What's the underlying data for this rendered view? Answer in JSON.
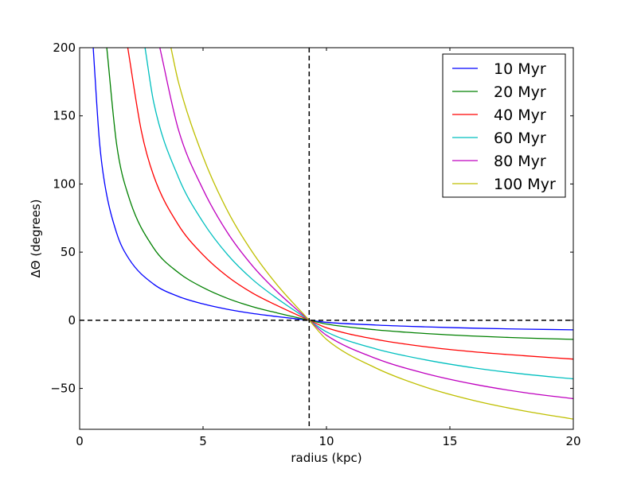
{
  "chart_data": {
    "type": "line",
    "title": "",
    "xlabel": "radius (kpc)",
    "ylabel": "ΔΘ (degrees)",
    "xlim": [
      0,
      20
    ],
    "ylim": [
      -80,
      200
    ],
    "xticks": [
      0,
      5,
      10,
      15,
      20
    ],
    "xtick_labels": [
      "0",
      "5",
      "10",
      "15",
      "20"
    ],
    "yticks": [
      -50,
      0,
      50,
      100,
      150,
      200
    ],
    "ytick_labels": [
      "−50",
      "0",
      "50",
      "100",
      "150",
      "200"
    ],
    "grid": false,
    "legend_position": "top-right",
    "reference_lines": [
      {
        "orientation": "vertical",
        "x": 9.3,
        "style": "dashed",
        "color": "#000000"
      },
      {
        "orientation": "horizontal",
        "y": 0,
        "style": "dashed",
        "color": "#000000"
      }
    ],
    "series": [
      {
        "name": "10 Myr",
        "color": "#0000ff",
        "x": [
          0.55,
          0.8,
          1.0,
          1.5,
          2.0,
          3.0,
          4.0,
          5.0,
          6.0,
          7.0,
          8.0,
          9.3,
          10.0,
          12.0,
          14.0,
          16.0,
          18.0,
          20.0
        ],
        "y": [
          200,
          132,
          102,
          64,
          45,
          26.5,
          17.5,
          12,
          8,
          5,
          2.7,
          0,
          -1.5,
          -3.5,
          -4.8,
          -5.8,
          -6.5,
          -7
        ]
      },
      {
        "name": "20 Myr",
        "color": "#008000",
        "x": [
          1.1,
          1.5,
          2.0,
          3.0,
          4.0,
          5.0,
          6.0,
          7.0,
          8.0,
          9.3,
          10.0,
          12.0,
          14.0,
          16.0,
          18.0,
          20.0
        ],
        "y": [
          200,
          129,
          90,
          53,
          35,
          24,
          16,
          10,
          5.4,
          0,
          -2.8,
          -7,
          -9.7,
          -11.6,
          -13,
          -14
        ]
      },
      {
        "name": "40 Myr",
        "color": "#ff0000",
        "x": [
          1.95,
          2.5,
          3.0,
          4.0,
          5.0,
          6.0,
          7.0,
          8.0,
          9.3,
          10.0,
          12.0,
          14.0,
          16.0,
          18.0,
          20.0
        ],
        "y": [
          200,
          139,
          106,
          70,
          48,
          32,
          20,
          10.8,
          0,
          -5.5,
          -14,
          -19.4,
          -23.2,
          -26,
          -28.5
        ]
      },
      {
        "name": "60 Myr",
        "color": "#00bfbf",
        "x": [
          2.65,
          3.0,
          4.0,
          5.0,
          6.0,
          7.0,
          8.0,
          9.3,
          10.0,
          12.0,
          14.0,
          16.0,
          18.0,
          20.0
        ],
        "y": [
          200,
          160,
          105,
          72,
          48,
          30,
          16,
          0,
          -8.5,
          -21,
          -29,
          -35,
          -39.5,
          -43
        ]
      },
      {
        "name": "80 Myr",
        "color": "#bf00bf",
        "x": [
          3.25,
          4.0,
          5.0,
          6.0,
          7.0,
          8.0,
          9.3,
          10.0,
          12.0,
          14.0,
          16.0,
          18.0,
          20.0
        ],
        "y": [
          200,
          140,
          96,
          64,
          40,
          21,
          0,
          -11,
          -28,
          -39,
          -47,
          -53,
          -57.5
        ]
      },
      {
        "name": "100 Myr",
        "color": "#bfbf00",
        "x": [
          3.7,
          4.0,
          5.0,
          6.0,
          7.0,
          8.0,
          9.3,
          10.0,
          12.0,
          14.0,
          16.0,
          18.0,
          20.0
        ],
        "y": [
          200,
          175,
          120,
          80,
          50,
          26,
          0,
          -14,
          -35,
          -49,
          -59,
          -66.5,
          -72.5
        ]
      }
    ]
  }
}
